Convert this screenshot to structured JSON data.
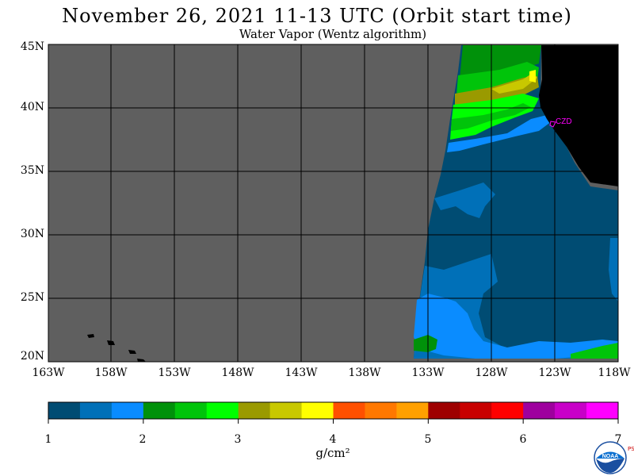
{
  "title": "November 26, 2021  11-13 UTC  (Orbit start time)",
  "subtitle": "Water Vapor (Wentz algorithm)",
  "lat_labels": [
    "45N",
    "40N",
    "35N",
    "30N",
    "25N",
    "20N"
  ],
  "lon_labels": [
    "163W",
    "158W",
    "153W",
    "148W",
    "143W",
    "138W",
    "133W",
    "128W",
    "123W",
    "118W"
  ],
  "station_label": "CZD",
  "colorbar": {
    "unit": "g/cm²",
    "tick_labels": [
      "1",
      "2",
      "3",
      "4",
      "5",
      "6",
      "7"
    ],
    "colors": [
      "#004c73",
      "#0070b8",
      "#0a8cff",
      "#00910a",
      "#00c40a",
      "#00ff00",
      "#9a9a00",
      "#c8c800",
      "#ffff00",
      "#ff5000",
      "#ff7800",
      "#ffa000",
      "#9e0000",
      "#c80000",
      "#ff0000",
      "#9e009e",
      "#c800c8",
      "#ff00ff"
    ]
  },
  "colors": {
    "missing_data": "#5f5f5f",
    "land": "#000000",
    "grid": "#000000",
    "station": "#ff00ff"
  },
  "logo": {
    "text": "NOAA",
    "side_text": "PSL"
  }
}
